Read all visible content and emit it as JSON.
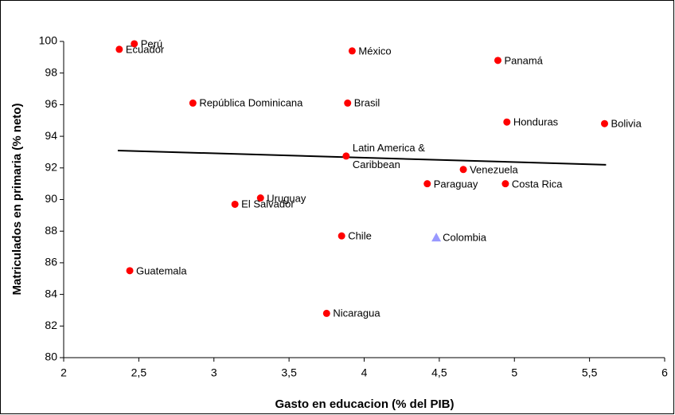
{
  "chart_data": {
    "type": "scatter",
    "x_label": "Gasto en educacion (% del PIB)",
    "y_label": "Matriculados en primaria (% neto)",
    "xlim": [
      2,
      6
    ],
    "xticks": [
      2,
      {
        "value": 2.5,
        "label": "2,5"
      },
      3,
      {
        "value": 3.5,
        "label": "3,5"
      },
      4,
      {
        "value": 4.5,
        "label": "4,5"
      },
      5,
      {
        "value": 5.5,
        "label": "5,5"
      },
      6
    ],
    "ylim": [
      80,
      100
    ],
    "yticks": [
      80,
      82,
      84,
      86,
      88,
      90,
      92,
      94,
      96,
      98,
      100
    ],
    "grid": false,
    "series": [
      {
        "color": "#ff0000",
        "marker": "circle",
        "labels": [
          "Perú",
          "Ecuador",
          "México",
          "Panamá",
          "República Dominicana",
          "Brasil",
          "Honduras",
          "Bolivia",
          "Latin America &\nCaribbean",
          "Venezuela",
          "Paraguay",
          "Costa Rica",
          "Uruguay",
          "El Salvador",
          "Chile",
          "Guatemala",
          "Nicaragua"
        ],
        "x": [
          2.47,
          2.37,
          3.92,
          4.89,
          2.86,
          3.89,
          4.95,
          5.6,
          3.88,
          4.66,
          4.42,
          4.94,
          3.31,
          3.14,
          3.85,
          2.44,
          3.75
        ],
        "y": [
          99.85,
          99.5,
          99.4,
          98.8,
          96.1,
          96.1,
          94.9,
          94.8,
          92.75,
          91.9,
          91.0,
          91.0,
          90.1,
          89.7,
          87.7,
          85.5,
          82.8
        ]
      },
      {
        "color": "#9999ff",
        "marker": "triangle",
        "labels": [
          "Colombia"
        ],
        "x": [
          4.48
        ],
        "y": [
          87.6
        ]
      }
    ],
    "trendline": {
      "color": "#000000",
      "x": [
        2.36,
        5.61
      ],
      "y": [
        93.1,
        92.2
      ]
    }
  }
}
